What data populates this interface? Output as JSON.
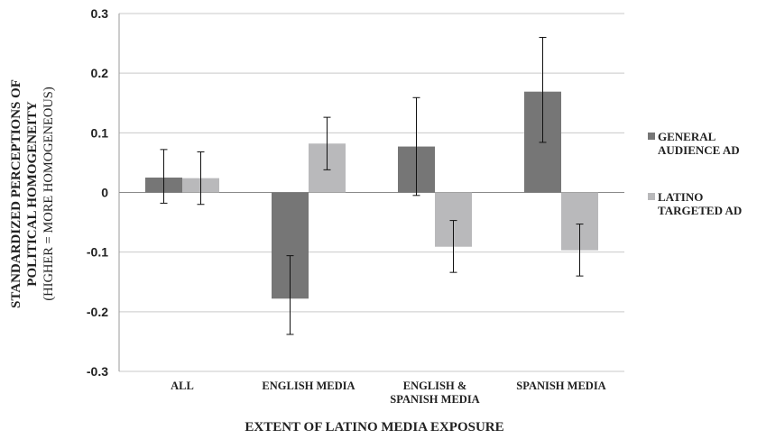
{
  "chart_data": {
    "type": "bar",
    "categories": [
      [
        "ALL"
      ],
      [
        "ENGLISH MEDIA"
      ],
      [
        "ENGLISH &",
        "SPANISH MEDIA"
      ],
      [
        "SPANISH MEDIA"
      ]
    ],
    "series": [
      {
        "name": [
          "GENERAL",
          "AUDIENCE AD"
        ],
        "color": "#767676",
        "values": [
          0.025,
          -0.178,
          0.077,
          0.169
        ],
        "error_low": [
          -0.018,
          -0.238,
          -0.005,
          0.084
        ],
        "error_high": [
          0.072,
          -0.106,
          0.159,
          0.26
        ]
      },
      {
        "name": [
          "LATINO",
          "TARGETED AD"
        ],
        "color": "#b9b9bb",
        "values": [
          0.024,
          0.082,
          -0.091,
          -0.097
        ],
        "error_low": [
          -0.02,
          0.038,
          -0.134,
          -0.14
        ],
        "error_high": [
          0.068,
          0.126,
          -0.047,
          -0.053
        ]
      }
    ],
    "xlabel": "EXTENT OF LATINO MEDIA EXPOSURE",
    "ylabel": [
      "STANDARDIZED PERCEPTIONS OF",
      "POLITICAL HOMOGENEITY",
      "(HIGHER = MORE HOMOGENEOUS)"
    ],
    "ylim": [
      -0.3,
      0.3
    ],
    "yticks": [
      0.3,
      0.2,
      0.1,
      0,
      -0.1,
      -0.2,
      -0.3
    ],
    "ytick_labels": [
      "0.3",
      "0.2",
      "0.1",
      "0",
      "-0.1",
      "-0.2",
      "-0.3"
    ],
    "grid": true,
    "legend_position": "right"
  }
}
